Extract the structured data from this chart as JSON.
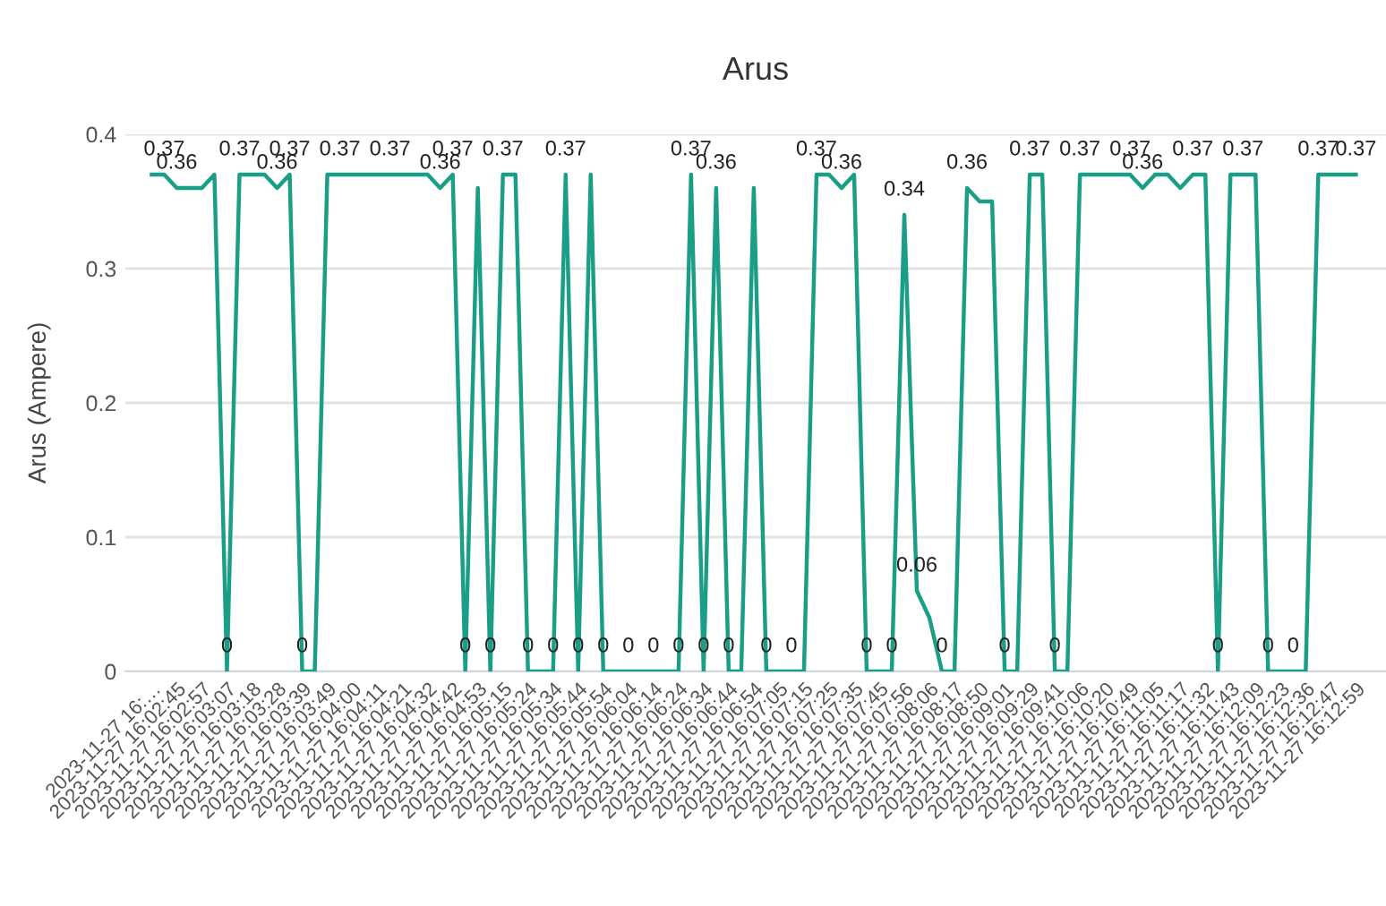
{
  "chart_data": {
    "type": "line",
    "title": "Arus",
    "ylabel": "Arus (Ampere)",
    "categories": [
      "2023-11-27 16:…",
      null,
      "2023-11-27 16:02:45",
      null,
      "2023-11-27 16:02:57",
      null,
      "2023-11-27 16:03:07",
      null,
      "2023-11-27 16:03:18",
      null,
      "2023-11-27 16:03:28",
      null,
      "2023-11-27 16:03:39",
      null,
      "2023-11-27 16:03:49",
      null,
      "2023-11-27 16:04:00",
      null,
      "2023-11-27 16:04:11",
      null,
      "2023-11-27 16:04:21",
      null,
      "2023-11-27 16:04:32",
      null,
      "2023-11-27 16:04:42",
      null,
      "2023-11-27 16:04:53",
      null,
      "2023-11-27 16:05:15",
      null,
      "2023-11-27 16:05:24",
      null,
      "2023-11-27 16:05:34",
      null,
      "2023-11-27 16:05:44",
      null,
      "2023-11-27 16:05:54",
      null,
      "2023-11-27 16:06:04",
      null,
      "2023-11-27 16:06:14",
      null,
      "2023-11-27 16:06:24",
      null,
      "2023-11-27 16:06:34",
      null,
      "2023-11-27 16:06:44",
      null,
      "2023-11-27 16:06:54",
      null,
      "2023-11-27 16:07:05",
      null,
      "2023-11-27 16:07:15",
      null,
      "2023-11-27 16:07:25",
      null,
      "2023-11-27 16:07:35",
      null,
      "2023-11-27 16:07:45",
      null,
      "2023-11-27 16:07:56",
      null,
      "2023-11-27 16:08:06",
      null,
      "2023-11-27 16:08:17",
      null,
      "2023-11-27 16:08:50",
      null,
      "2023-11-27 16:09:01",
      null,
      "2023-11-27 16:09:29",
      null,
      "2023-11-27 16:09:41",
      null,
      "2023-11-27 16:10:06",
      null,
      "2023-11-27 16:10:20",
      null,
      "2023-11-27 16:10:49",
      null,
      "2023-11-27 16:11:05",
      null,
      "2023-11-27 16:11:17",
      null,
      "2023-11-27 16:11:32",
      null,
      "2023-11-27 16:11:43",
      null,
      "2023-11-27 16:12:09",
      null,
      "2023-11-27 16:12:23",
      null,
      "2023-11-27 16:12:36",
      null,
      "2023-11-27 16:12:47",
      null,
      "2023-11-27 16:12:59"
    ],
    "series": [
      {
        "color": "#1a9e86",
        "values": [
          0.37,
          0.37,
          0.36,
          0.36,
          0.36,
          0.37,
          0,
          0.37,
          0.37,
          0.37,
          0.36,
          0.37,
          0,
          0,
          0.37,
          0.37,
          0.37,
          0.37,
          0.37,
          0.37,
          0.37,
          0.37,
          0.37,
          0.36,
          0.37,
          0,
          0.36,
          0,
          0.37,
          0.37,
          0,
          0,
          0,
          0.37,
          0,
          0.37,
          0,
          0,
          0,
          0,
          0,
          0,
          0,
          0.37,
          0,
          0.36,
          0,
          0,
          0.36,
          0,
          0,
          0,
          0,
          0.37,
          0.37,
          0.36,
          0.37,
          0,
          0,
          0,
          0.34,
          0.06,
          0.04,
          0,
          0,
          0.36,
          0.35,
          0.35,
          0,
          0,
          0.37,
          0.37,
          0,
          0,
          0.37,
          0.37,
          0.37,
          0.37,
          0.37,
          0.36,
          0.37,
          0.37,
          0.36,
          0.37,
          0.37,
          0,
          0.37,
          0.37,
          0.37,
          0,
          0,
          0,
          0,
          0.37,
          0.37,
          0.37,
          0.37
        ],
        "value_labels": [
          null,
          "0.37",
          "0.36",
          null,
          null,
          null,
          "0",
          "0.37",
          null,
          null,
          "0.36",
          "0.37",
          "0",
          null,
          null,
          "0.37",
          null,
          null,
          null,
          "0.37",
          null,
          null,
          null,
          "0.36",
          "0.37",
          "0",
          null,
          "0",
          "0.37",
          null,
          "0",
          null,
          "0",
          "0.37",
          "0",
          null,
          "0",
          null,
          "0",
          null,
          "0",
          null,
          "0",
          "0.37",
          "0",
          "0.36",
          "0",
          null,
          null,
          "0",
          null,
          "0",
          null,
          "0.37",
          null,
          "0.36",
          null,
          "0",
          null,
          "0",
          "0.34",
          "0.06",
          null,
          "0",
          null,
          "0.36",
          null,
          null,
          "0",
          null,
          "0.37",
          null,
          "0",
          null,
          "0.37",
          null,
          null,
          null,
          "0.37",
          "0.36",
          null,
          null,
          null,
          "0.37",
          null,
          "0",
          null,
          "0.37",
          null,
          "0",
          null,
          "0",
          null,
          "0.37",
          null,
          null,
          "0.37"
        ]
      }
    ],
    "ylim": [
      0,
      0.4
    ],
    "yticks": [
      0,
      0.1,
      0.2,
      0.3,
      0.4
    ],
    "grid": "y",
    "marker": "none",
    "line_style": "solid"
  }
}
